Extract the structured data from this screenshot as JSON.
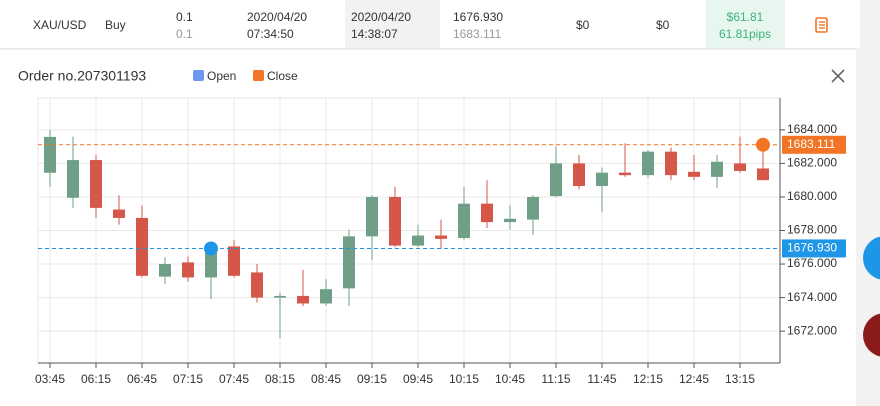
{
  "order_row": [
    [
      "XAU/USD"
    ],
    [
      "Buy"
    ],
    [
      "0.1",
      "0.1"
    ],
    [
      "2020/04/20",
      "07:34:50"
    ],
    [
      "2020/04/20",
      "14:38:07"
    ],
    [
      "1676.930",
      "1683.111"
    ],
    [
      "$0"
    ],
    [
      "$0"
    ],
    [
      "$61.81",
      "61.81pips"
    ]
  ],
  "modal": {
    "title": "Order no.207301193"
  },
  "chart_data": {
    "type": "candlestick",
    "categories": [
      "03:45",
      null,
      "06:15",
      null,
      "06:45",
      null,
      "07:15",
      null,
      "07:45",
      null,
      "08:15",
      null,
      "08:45",
      null,
      "09:15",
      null,
      "09:45",
      null,
      "10:15",
      null,
      "10:45",
      null,
      "11:15",
      null,
      "11:45",
      null,
      "12:15",
      null,
      "12:45",
      null,
      "13:15",
      null
    ],
    "open": [
      1681.44,
      1679.95,
      1682.2,
      1679.25,
      1678.75,
      1675.25,
      1676.1,
      1675.2,
      1677.05,
      1675.5,
      1674.0,
      1674.1,
      1673.65,
      1674.55,
      1677.65,
      1680.0,
      1677.1,
      1677.7,
      1677.55,
      1679.6,
      1678.5,
      1678.65,
      1680.05,
      1682.0,
      1680.65,
      1681.45,
      1681.3,
      1682.7,
      1681.5,
      1681.2,
      1682.0,
      1681.7
    ],
    "high": [
      1684.0,
      1683.6,
      1682.5,
      1680.1,
      1679.5,
      1676.4,
      1676.45,
      1677.0,
      1677.45,
      1676.0,
      1674.3,
      1675.65,
      1675.1,
      1678.05,
      1680.1,
      1680.6,
      1678.35,
      1678.65,
      1680.6,
      1681.0,
      1679.5,
      1680.1,
      1683.0,
      1682.5,
      1681.75,
      1683.2,
      1682.8,
      1682.95,
      1682.5,
      1682.5,
      1683.6,
      1682.95
    ],
    "low": [
      1680.6,
      1679.35,
      1678.75,
      1678.35,
      1675.2,
      1674.8,
      1674.95,
      1673.9,
      1675.2,
      1673.7,
      1671.6,
      1673.5,
      1673.5,
      1673.5,
      1676.25,
      1677.0,
      1677.0,
      1676.9,
      1677.45,
      1678.15,
      1678.05,
      1677.75,
      1680.0,
      1680.45,
      1679.1,
      1681.2,
      1681.15,
      1681.0,
      1681.0,
      1680.55,
      1681.45,
      1681.0
    ],
    "close": [
      1683.58,
      1682.2,
      1679.35,
      1678.75,
      1675.3,
      1676.0,
      1675.2,
      1676.75,
      1675.3,
      1674.0,
      1674.1,
      1673.65,
      1674.5,
      1677.65,
      1680.0,
      1677.1,
      1677.7,
      1677.5,
      1679.6,
      1678.5,
      1678.7,
      1680.0,
      1682.0,
      1680.65,
      1681.45,
      1681.3,
      1682.7,
      1681.3,
      1681.2,
      1682.1,
      1681.55,
      1681.0
    ],
    "up_color": "#6f9f86",
    "down_color": "#d4574a",
    "ylim": [
      1670.1,
      1685.9
    ],
    "yticks": [
      {
        "value": 1672,
        "label": "1672.000"
      },
      {
        "value": 1674,
        "label": "1674.000"
      },
      {
        "value": 1676,
        "label": "1676.000"
      },
      {
        "value": 1678,
        "label": "1678.000"
      },
      {
        "value": 1680,
        "label": "1680.000"
      },
      {
        "value": 1682,
        "label": "1682.000"
      },
      {
        "value": 1684,
        "label": "1684.000"
      }
    ],
    "grid": true,
    "markers": [
      {
        "name": "Open",
        "legend_color": "#6d97f0",
        "color": "#1e96e8",
        "value": 1676.93,
        "label": "1676.930",
        "index": 7
      },
      {
        "name": "Close",
        "legend_color": "#f27424",
        "color": "#f27424",
        "value": 1683.111,
        "label": "1683.111",
        "index": 31
      }
    ]
  }
}
